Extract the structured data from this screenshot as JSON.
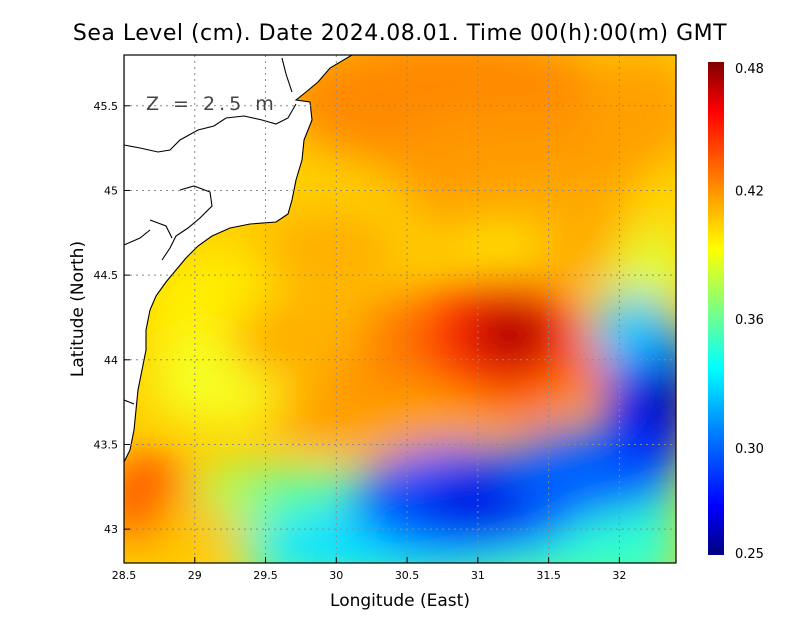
{
  "title": "Sea Level (cm). Date 2024.08.01. Time 00(h):00(m) GMT",
  "depth_label": "Z = 2.5 m",
  "x_axis": {
    "label": "Longitude (East)",
    "range": [
      28.5,
      32.4
    ],
    "ticks": [
      "28.5",
      "29",
      "29.5",
      "30",
      "30.5",
      "31",
      "31.5",
      "32"
    ]
  },
  "y_axis": {
    "label": "Latitude (North)",
    "range": [
      42.8,
      45.8
    ],
    "ticks": [
      "43",
      "43.5",
      "44",
      "44.5",
      "45",
      "45.5"
    ]
  },
  "grid": true,
  "colorbar": {
    "min": 0.25,
    "max": 0.48,
    "ticks": [
      "0.48",
      "0.42",
      "0.36",
      "0.30",
      "0.25"
    ],
    "colors": [
      "#00007f",
      "#0000ff",
      "#0080ff",
      "#00ffff",
      "#80ff80",
      "#ffff00",
      "#ff8000",
      "#ff0000",
      "#7f0000"
    ]
  },
  "features": {
    "sea_level_maximum_center": [
      31.2,
      44.15
    ],
    "sea_level_minimum_centers": [
      [
        31.0,
        43.1
      ],
      [
        32.3,
        43.75
      ]
    ]
  }
}
